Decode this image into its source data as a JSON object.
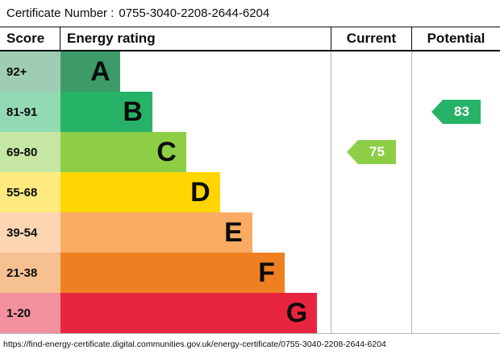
{
  "certificate": {
    "label": "Certificate Number :",
    "number": "0755-3040-2208-2644-6204"
  },
  "header": {
    "score": "Score",
    "rating": "Energy rating",
    "current": "Current",
    "potential": "Potential"
  },
  "chart_data": {
    "type": "bar",
    "title": "Energy efficiency rating chart",
    "categories": [
      "A",
      "B",
      "C",
      "D",
      "E",
      "F",
      "G"
    ],
    "bands": [
      {
        "score": "92+",
        "letter": "A",
        "color": "#3d9b69",
        "score_bg": "#9ecdb4",
        "width_pct": 22
      },
      {
        "score": "81-91",
        "letter": "B",
        "color": "#27b367",
        "score_bg": "#93d9b3",
        "width_pct": 34
      },
      {
        "score": "69-80",
        "letter": "C",
        "color": "#8dce46",
        "score_bg": "#c6e7a3",
        "width_pct": 46.5
      },
      {
        "score": "55-68",
        "letter": "D",
        "color": "#ffd500",
        "score_bg": "#ffea80",
        "width_pct": 59
      },
      {
        "score": "39-54",
        "letter": "E",
        "color": "#fbab64",
        "score_bg": "#fdd5b2",
        "width_pct": 71
      },
      {
        "score": "21-38",
        "letter": "F",
        "color": "#ee8022",
        "score_bg": "#f7c091",
        "width_pct": 83
      },
      {
        "score": "1-20",
        "letter": "G",
        "color": "#e9243f",
        "score_bg": "#f4919f",
        "width_pct": 95
      }
    ],
    "current": {
      "value": 75,
      "band": "C",
      "color": "#8dce46"
    },
    "potential": {
      "value": 83,
      "band": "B",
      "color": "#27b367"
    }
  },
  "footer": {
    "url": "https://find-energy-certificate.digital.communities.gov.uk/energy-certificate/0755-3040-2208-2644-6204"
  }
}
